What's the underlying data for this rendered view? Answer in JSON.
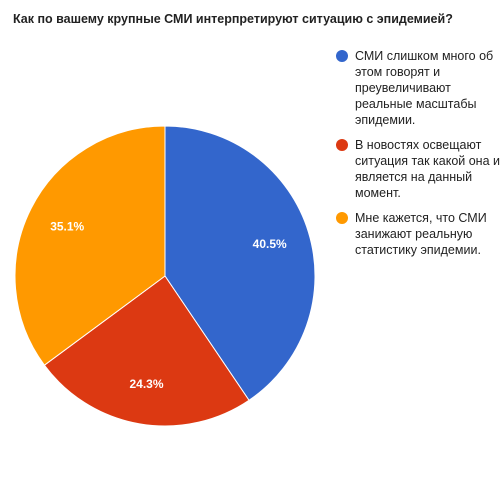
{
  "chart_data": {
    "type": "pie",
    "title": "Как по вашему крупные СМИ интерпретируют ситуацию с эпидемией?",
    "legend_position": "right",
    "slices": [
      {
        "label": "СМИ слишком много об этом говорят и преувеличивают реальные масштабы эпидемии.",
        "value": 40.5,
        "value_label": "40.5%",
        "color": "#3366cc"
      },
      {
        "label": "В новостях освещают ситуация так какой она и является на данный момент.",
        "value": 24.3,
        "value_label": "24.3%",
        "color": "#dc3912"
      },
      {
        "label": "Мне кажется, что СМИ занижают реальную статистику эпидемии.",
        "value": 35.1,
        "value_label": "35.1%",
        "color": "#ff9900"
      }
    ]
  }
}
